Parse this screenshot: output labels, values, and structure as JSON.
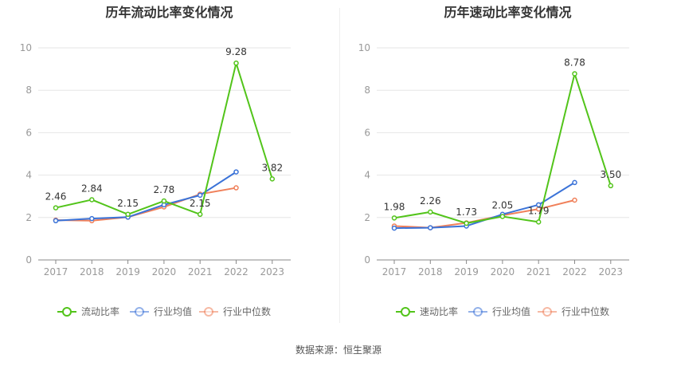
{
  "chart_data": [
    {
      "type": "line",
      "title": "历年流动比率变化情况",
      "categories": [
        "2017",
        "2018",
        "2019",
        "2020",
        "2021",
        "2022",
        "2023"
      ],
      "ylim": [
        0,
        10
      ],
      "yticks": [
        0,
        2,
        4,
        6,
        8,
        10
      ],
      "grid": true,
      "legend_position": "bottom",
      "series": [
        {
          "name": "流动比率",
          "color": "#52c41a",
          "values": [
            2.46,
            2.84,
            2.15,
            2.78,
            2.15,
            9.28,
            3.82
          ],
          "labels": [
            "2.46",
            "2.84",
            "2.15",
            "2.78",
            "2.15",
            "9.28",
            "3.82"
          ]
        },
        {
          "name": "行业均值",
          "color": "#3b73d8",
          "values": [
            1.85,
            1.95,
            2.02,
            2.6,
            3.05,
            4.15,
            null
          ]
        },
        {
          "name": "行业中位数",
          "color": "#f0805a",
          "values": [
            1.88,
            1.85,
            2.02,
            2.5,
            3.1,
            3.4,
            null
          ]
        }
      ]
    },
    {
      "type": "line",
      "title": "历年速动比率变化情况",
      "categories": [
        "2017",
        "2018",
        "2019",
        "2020",
        "2021",
        "2022",
        "2023"
      ],
      "ylim": [
        0,
        10
      ],
      "yticks": [
        0,
        2,
        4,
        6,
        8,
        10
      ],
      "grid": true,
      "legend_position": "bottom",
      "series": [
        {
          "name": "速动比率",
          "color": "#52c41a",
          "values": [
            1.98,
            2.26,
            1.73,
            2.05,
            1.79,
            8.78,
            3.5
          ],
          "labels": [
            "1.98",
            "2.26",
            "1.73",
            "2.05",
            "1.79",
            "8.78",
            "3.50"
          ]
        },
        {
          "name": "行业均值",
          "color": "#3b73d8",
          "values": [
            1.5,
            1.52,
            1.6,
            2.15,
            2.6,
            3.65,
            null
          ]
        },
        {
          "name": "行业中位数",
          "color": "#f0805a",
          "values": [
            1.6,
            1.52,
            1.75,
            2.1,
            2.4,
            2.82,
            null
          ]
        }
      ]
    }
  ],
  "footer": {
    "source": "数据来源：恒生聚源"
  }
}
